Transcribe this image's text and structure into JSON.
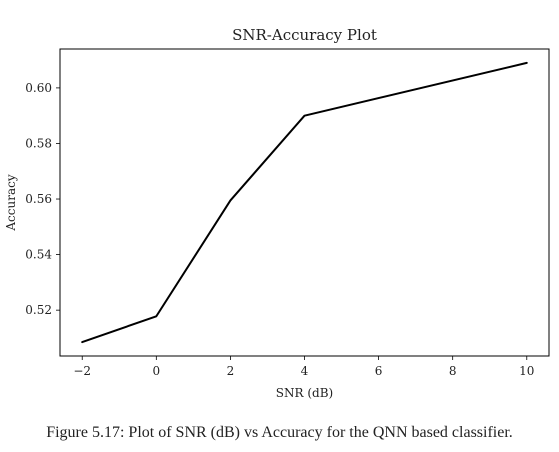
{
  "chart_data": {
    "type": "line",
    "title": "SNR-Accuracy Plot",
    "xlabel": "SNR (dB)",
    "ylabel": "Accuracy",
    "x": [
      -2,
      0,
      2,
      4,
      10
    ],
    "series": [
      {
        "values": [
          0.5085,
          0.5178,
          0.5595,
          0.59,
          0.609
        ]
      }
    ],
    "xlim": [
      -2.6,
      10.6
    ],
    "ylim": [
      0.5035,
      0.614
    ],
    "xticks": [
      -2,
      0,
      2,
      4,
      6,
      8,
      10
    ],
    "xtick_labels": [
      "−2",
      "0",
      "2",
      "4",
      "6",
      "8",
      "10"
    ],
    "yticks": [
      0.52,
      0.54,
      0.56,
      0.58,
      0.6
    ],
    "ytick_labels": [
      "0.52",
      "0.54",
      "0.56",
      "0.58",
      "0.60"
    ],
    "grid": false,
    "line_color": "#000000"
  },
  "caption": "Figure 5.17: Plot of SNR (dB) vs Accuracy for the QNN based classifier."
}
